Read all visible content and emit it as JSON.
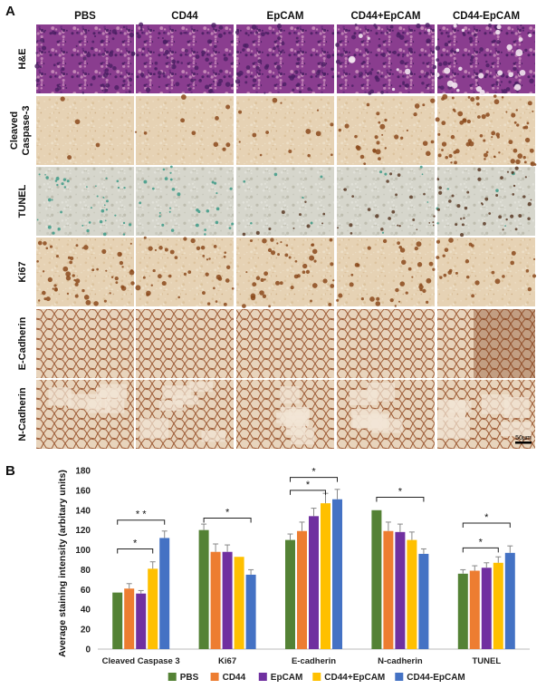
{
  "panel_a": {
    "letter": "A",
    "columns": [
      "PBS",
      "CD44",
      "EpCAM",
      "CD44+EpCAM",
      "CD44-EpCAM"
    ],
    "rows": [
      "H&E",
      "Cleaved Caspase-3",
      "TUNEL",
      "Ki67",
      "E-Cadherin",
      "N-Cadherin"
    ],
    "scale_bar": "50µm",
    "colors": {
      "he": "#8a3d8f",
      "he_dark": "#4a1f63",
      "he_light": "#c68ab8",
      "ihc_bg": "#e6d2b4",
      "ihc_stain": "#8b4a1c",
      "tunel_bg": "#d6d6cc",
      "tunel_green": "#3c9a86",
      "tunel_dark": "#5a3a24"
    }
  },
  "panel_b": {
    "letter": "B"
  },
  "chart_data": {
    "type": "bar",
    "ylabel": "Average staining intensity (arbitary units)",
    "ylim": [
      0,
      180
    ],
    "yticks": [
      0,
      20,
      40,
      60,
      80,
      100,
      120,
      140,
      160,
      180
    ],
    "categories": [
      "Cleaved Caspase 3",
      "Ki67",
      "E-cadherin",
      "N-cadherin",
      "TUNEL"
    ],
    "series": [
      {
        "name": "PBS",
        "color": "#548235",
        "values": [
          57,
          120,
          110,
          140,
          76
        ],
        "errors": [
          0,
          6,
          6,
          0,
          4
        ]
      },
      {
        "name": "CD44",
        "color": "#ed7d31",
        "values": [
          61,
          98,
          119,
          119,
          79
        ],
        "errors": [
          5,
          8,
          9,
          9,
          5
        ]
      },
      {
        "name": "EpCAM",
        "color": "#7030a0",
        "values": [
          56,
          98,
          134,
          118,
          82
        ],
        "errors": [
          3,
          7,
          8,
          8,
          5
        ]
      },
      {
        "name": "CD44+EpCAM",
        "color": "#ffc000",
        "values": [
          81,
          93,
          147,
          110,
          87
        ],
        "errors": [
          7,
          0,
          10,
          8,
          6
        ]
      },
      {
        "name": "CD44-EpCAM",
        "color": "#4472c4",
        "values": [
          112,
          75,
          151,
          96,
          97
        ],
        "errors": [
          7,
          5,
          10,
          5,
          7
        ]
      }
    ],
    "significance": [
      {
        "category": 0,
        "from": 0,
        "to": 4,
        "label": "* *",
        "y": 130
      },
      {
        "category": 0,
        "from": 0,
        "to": 3,
        "label": "*",
        "y": 101
      },
      {
        "category": 1,
        "from": 0,
        "to": 4,
        "label": "*",
        "y": 132
      },
      {
        "category": 2,
        "from": 0,
        "to": 4,
        "label": "*",
        "y": 173
      },
      {
        "category": 2,
        "from": 0,
        "to": 3,
        "label": "*",
        "y": 160
      },
      {
        "category": 3,
        "from": 0,
        "to": 4,
        "label": "*",
        "y": 153
      },
      {
        "category": 4,
        "from": 0,
        "to": 4,
        "label": "*",
        "y": 127
      },
      {
        "category": 4,
        "from": 0,
        "to": 3,
        "label": "*",
        "y": 102
      }
    ],
    "legend_position": "bottom"
  }
}
